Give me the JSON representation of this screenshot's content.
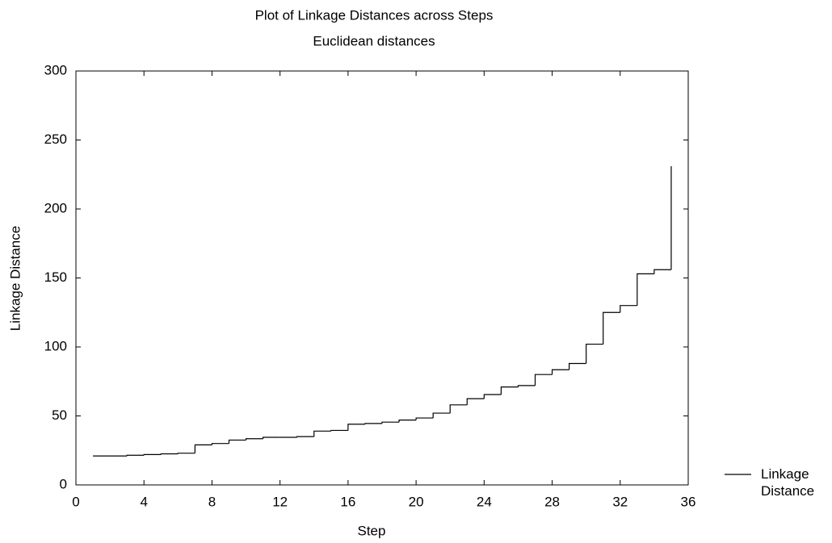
{
  "chart_data": {
    "type": "line",
    "drawstyle": "steps-post",
    "title": "Plot of Linkage Distances across Steps",
    "subtitle": "Euclidean distances",
    "xlabel": "Step",
    "ylabel": "Linkage Distance",
    "x": [
      1,
      2,
      3,
      4,
      5,
      6,
      7,
      8,
      9,
      10,
      11,
      12,
      13,
      14,
      15,
      16,
      17,
      18,
      19,
      20,
      21,
      22,
      23,
      24,
      25,
      26,
      27,
      28,
      29,
      30,
      31,
      32,
      33,
      34,
      35
    ],
    "series": [
      {
        "name": "Linkage Distance",
        "color": "#000000",
        "values": [
          21,
          21,
          21.5,
          22,
          22.5,
          23,
          29,
          30,
          32.5,
          33.5,
          34.5,
          34.5,
          35,
          39,
          39.5,
          44,
          44.5,
          45.5,
          47,
          48.5,
          52,
          58,
          62.5,
          65.5,
          71,
          72,
          80,
          83.5,
          88,
          102,
          125,
          130,
          153,
          156,
          231
        ]
      }
    ],
    "xlim": [
      0,
      36
    ],
    "xticks": [
      0,
      4,
      8,
      12,
      16,
      20,
      24,
      28,
      32,
      36
    ],
    "ylim": [
      0,
      300
    ],
    "yticks": [
      0,
      50,
      100,
      150,
      200,
      250,
      300
    ],
    "grid": false,
    "legend": "right"
  }
}
